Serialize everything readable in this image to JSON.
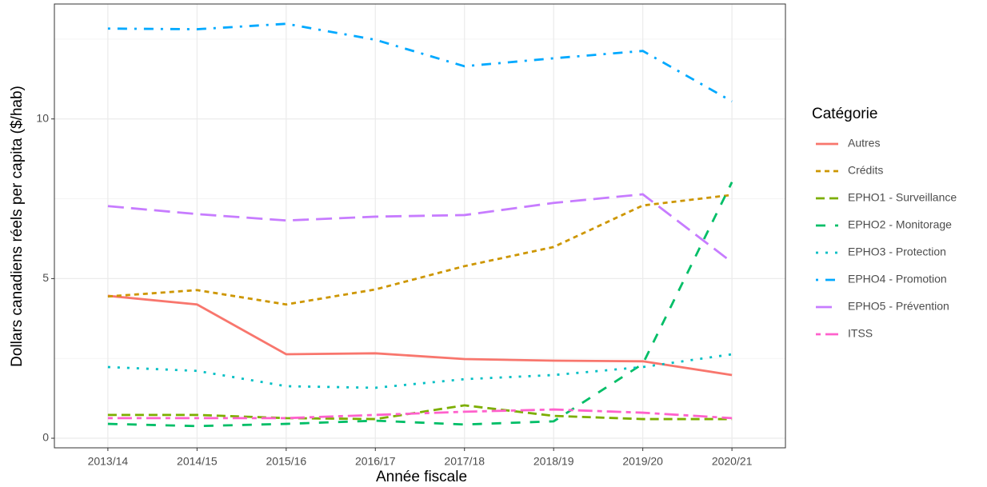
{
  "chart_data": {
    "type": "line",
    "x_label": "Année fiscale",
    "y_label": "Dollars canadiens réels per capita ($/hab)",
    "legend_title": "Catégorie",
    "legend_position": "right",
    "grid": true,
    "categories": [
      "2013/14",
      "2014/15",
      "2015/16",
      "2016/17",
      "2017/18",
      "2018/19",
      "2019/20",
      "2020/21"
    ],
    "ylim": [
      -0.3,
      13.6
    ],
    "yticks": [
      0,
      5,
      10
    ],
    "minor_yticks": [
      2.5,
      7.5,
      12.5
    ],
    "series": [
      {
        "name": "Autres",
        "color": "#F8766D",
        "dash": "none",
        "values": [
          4.46,
          4.19,
          2.63,
          2.66,
          2.48,
          2.43,
          2.41,
          1.98
        ]
      },
      {
        "name": "Crédits",
        "color": "#CD9600",
        "dash": "6 5",
        "values": [
          4.44,
          4.64,
          4.19,
          4.66,
          5.39,
          5.99,
          7.29,
          7.62
        ]
      },
      {
        "name": "EPHO1 - Surveillance",
        "color": "#7CAE00",
        "dash": "11 6",
        "values": [
          0.73,
          0.73,
          0.63,
          0.6,
          1.03,
          0.7,
          0.6,
          0.6
        ]
      },
      {
        "name": "EPHO2 - Monitorage",
        "color": "#00BE67",
        "dash": "12 12",
        "values": [
          0.45,
          0.38,
          0.45,
          0.55,
          0.43,
          0.53,
          2.33,
          8.02
        ]
      },
      {
        "name": "EPHO3 - Protection",
        "color": "#00BFC4",
        "dash": "3 9",
        "values": [
          2.23,
          2.11,
          1.63,
          1.58,
          1.85,
          1.98,
          2.23,
          2.63
        ]
      },
      {
        "name": "EPHO4 - Promotion",
        "color": "#00A9FF",
        "dash": "3 9 12 9",
        "values": [
          12.83,
          12.81,
          12.98,
          12.48,
          11.65,
          11.9,
          12.13,
          10.55
        ]
      },
      {
        "name": "EPHO5 - Prévention",
        "color": "#C77CFF",
        "dash": "20 9",
        "values": [
          7.27,
          7.02,
          6.82,
          6.94,
          6.99,
          7.37,
          7.64,
          5.51
        ]
      },
      {
        "name": "ITSS",
        "color": "#FF61CC",
        "dash": "6 6 18 6",
        "values": [
          0.63,
          0.63,
          0.63,
          0.73,
          0.83,
          0.9,
          0.8,
          0.63
        ]
      }
    ]
  }
}
